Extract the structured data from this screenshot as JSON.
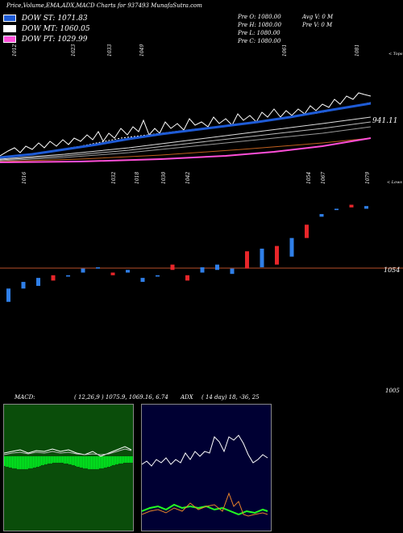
{
  "header": {
    "title": "Price,Volume,EMA,ADX,MACD Charts for 937493 MunafaSutra.com"
  },
  "legend": [
    {
      "label": "DOW ST: 1071.83",
      "color": "#1e5bd6"
    },
    {
      "label": "DOW MT: 1060.05",
      "color": "#ffffff"
    },
    {
      "label": "DOW PT: 1029.99",
      "color": "#ff4fd8"
    }
  ],
  "price_info": {
    "col1": [
      "Pre  O: 1080.00",
      "Pre  H: 1080.00",
      "Pre  L: 1080.00",
      "Pre  C: 1080.00"
    ],
    "col2": [
      "Avg V: 0  M",
      "Pre  V: 0  M"
    ]
  },
  "panels": {
    "ema_axis_label": "< Tops",
    "candle_axis_label": "< Lows",
    "candle_right_value": "1054",
    "ema_last_value": "941.11",
    "indicator_label": "1005"
  },
  "indicator_bar": {
    "macd": "MACD:",
    "macd_values": "( 12,26,9 ) 1075.9,  1069.16, 6.74",
    "adx": "ADX",
    "adx_values": "( 14  day) 18, -36,  25"
  },
  "colors": {
    "up_candle": "#2f7fe8",
    "down_candle": "#e8262a",
    "ema_short": "#1e5bd6",
    "ema_long": "#ff4fd8",
    "macd_bg": "#0a4d0a",
    "adx_bg": "#000033"
  },
  "chart_data": [
    {
      "type": "line",
      "name": "price-ema-panel",
      "top_labels": [
        "1012",
        "1023",
        "1033",
        "1049",
        "1061",
        "1081"
      ],
      "series": [
        {
          "name": "DOW ST",
          "values": [
            1000,
            1005,
            1003,
            1010,
            1008,
            1015,
            1020,
            1018,
            1025,
            1030,
            1032,
            1035,
            1040,
            1042,
            1045,
            1048,
            1050,
            1052,
            1055,
            1058,
            1060,
            1062,
            1065,
            1068,
            1070,
            1071.83
          ]
        },
        {
          "name": "DOW MT",
          "values": [
            995,
            996,
            998,
            1000,
            1002,
            1004,
            1006,
            1008,
            1010,
            1012,
            1014,
            1016,
            1018,
            1020,
            1022,
            1024,
            1026,
            1028,
            1030,
            1032,
            1034,
            1036,
            1038,
            1040,
            1042,
            1060.05
          ]
        },
        {
          "name": "DOW PT",
          "values": [
            985,
            986,
            987,
            988,
            989,
            990,
            991,
            992,
            993,
            994,
            995,
            996,
            997,
            998,
            999,
            1000,
            1001,
            1002,
            1003,
            1004,
            1005,
            1006,
            1007,
            1008,
            1009,
            1029.99
          ]
        }
      ]
    },
    {
      "type": "bar",
      "name": "candles-panel",
      "low_labels": [
        "1016",
        "1032",
        "1018",
        "1030",
        "1042",
        "1054",
        "1067",
        "1079"
      ],
      "candles": [
        {
          "o": 1040,
          "c": 1030,
          "dir": "up"
        },
        {
          "o": 1045,
          "c": 1040,
          "dir": "up"
        },
        {
          "o": 1048,
          "c": 1042,
          "dir": "up"
        },
        {
          "o": 1046,
          "c": 1050,
          "dir": "down"
        },
        {
          "o": 1050,
          "c": 1049,
          "dir": "up"
        },
        {
          "o": 1055,
          "c": 1052,
          "dir": "up"
        },
        {
          "o": 1056,
          "c": 1055,
          "dir": "up"
        },
        {
          "o": 1052,
          "c": 1050,
          "dir": "down"
        },
        {
          "o": 1054,
          "c": 1052,
          "dir": "up"
        },
        {
          "o": 1048,
          "c": 1045,
          "dir": "up"
        },
        {
          "o": 1050,
          "c": 1049,
          "dir": "up"
        },
        {
          "o": 1058,
          "c": 1054,
          "dir": "down"
        },
        {
          "o": 1050,
          "c": 1046,
          "dir": "down"
        },
        {
          "o": 1056,
          "c": 1052,
          "dir": "up"
        },
        {
          "o": 1058,
          "c": 1054,
          "dir": "up"
        },
        {
          "o": 1055,
          "c": 1051,
          "dir": "up"
        },
        {
          "o": 1068,
          "c": 1055,
          "dir": "down"
        },
        {
          "o": 1070,
          "c": 1056,
          "dir": "up"
        },
        {
          "o": 1072,
          "c": 1058,
          "dir": "down"
        },
        {
          "o": 1078,
          "c": 1064,
          "dir": "up"
        },
        {
          "o": 1088,
          "c": 1078,
          "dir": "down"
        },
        {
          "o": 1096,
          "c": 1094,
          "dir": "up"
        },
        {
          "o": 1100,
          "c": 1099,
          "dir": "up"
        },
        {
          "o": 1103,
          "c": 1101,
          "dir": "down"
        },
        {
          "o": 1102,
          "c": 1100,
          "dir": "up"
        }
      ]
    }
  ]
}
